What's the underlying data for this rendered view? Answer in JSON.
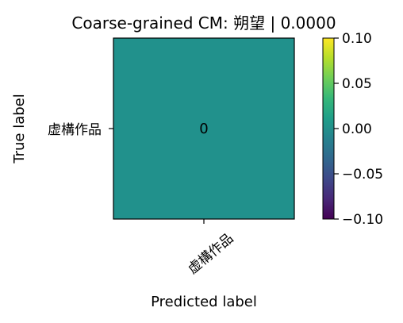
{
  "chart_data": {
    "type": "heatmap",
    "title": "Coarse-grained CM: 朔望 | 0.0000",
    "xlabel": "Predicted label",
    "ylabel": "True label",
    "x_categories": [
      "虚構作品"
    ],
    "y_categories": [
      "虚構作品"
    ],
    "matrix": [
      [
        0
      ]
    ],
    "cell_labels": [
      [
        "0"
      ]
    ],
    "colorbar": {
      "range": [
        -0.1,
        0.1
      ],
      "ticks": [
        0.1,
        0.05,
        0.0,
        -0.05,
        -0.1
      ],
      "tick_labels": [
        "0.10",
        "0.05",
        "0.00",
        "−0.05",
        "−0.10"
      ],
      "colormap": "viridis"
    },
    "grid": false
  },
  "colors": {
    "cell_fill": "#21918c",
    "cell_text": "#1a1a6e",
    "viridis_stops": [
      "#440154",
      "#482878",
      "#3e4989",
      "#31688e",
      "#26828e",
      "#1f9e89",
      "#35b779",
      "#6ece58",
      "#b5de2b",
      "#fde725"
    ]
  }
}
